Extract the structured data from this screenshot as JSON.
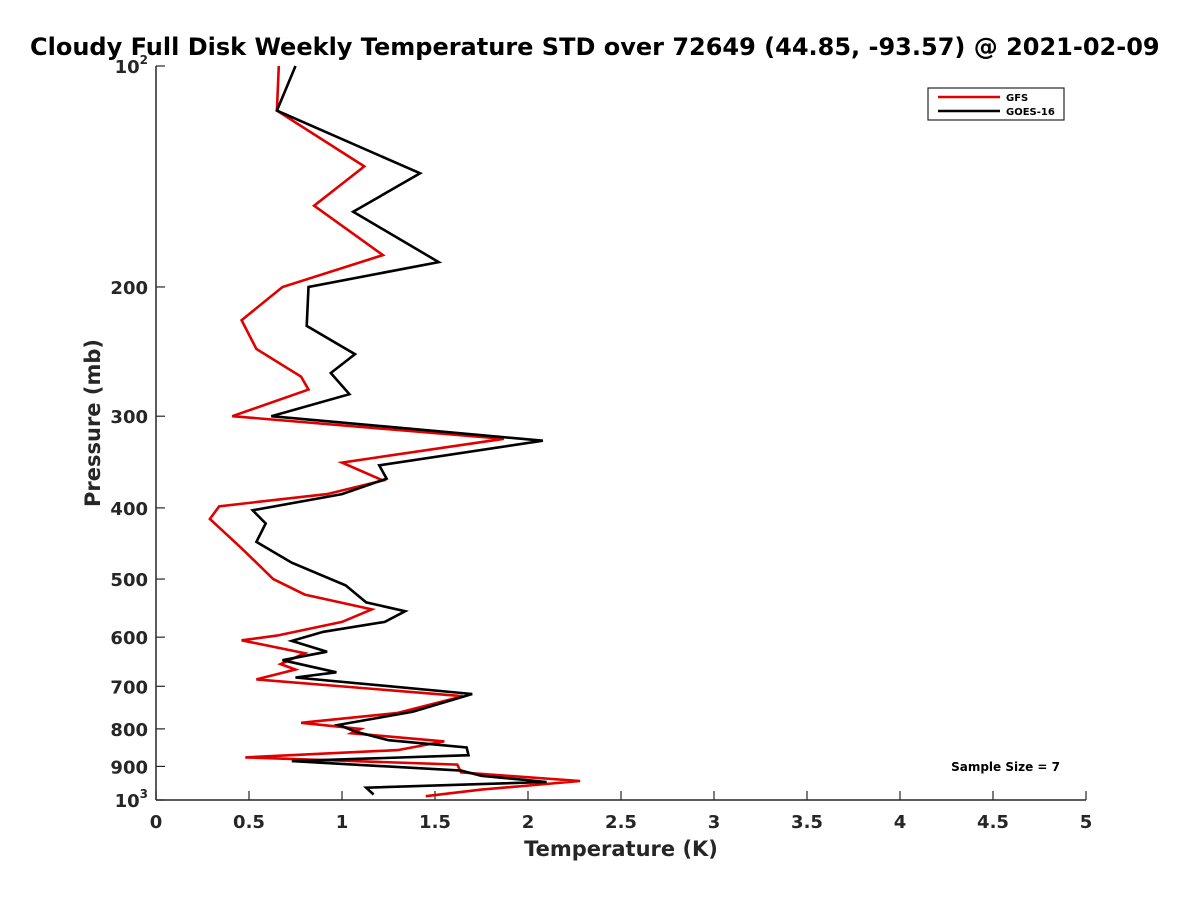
{
  "chart_data": {
    "type": "line",
    "title": "Cloudy Full Disk Weekly Temperature STD over 72649 (44.85, -93.57) @ 2021-02-09",
    "xlabel": "Temperature (K)",
    "ylabel": "Pressure (mb)",
    "xlim": [
      0,
      5
    ],
    "ylim": [
      100,
      1000
    ],
    "y_scale": "log",
    "y_reversed": true,
    "grid": false,
    "legend_position": "top-right",
    "x_ticks": [
      0,
      0.5,
      1,
      1.5,
      2,
      2.5,
      3,
      3.5,
      4,
      4.5,
      5
    ],
    "x_tick_labels": [
      "0",
      "0.5",
      "1",
      "1.5",
      "2",
      "2.5",
      "3",
      "3.5",
      "4",
      "4.5",
      "5"
    ],
    "y_ticks": [
      {
        "value": 100,
        "base": "10",
        "exp": "2"
      },
      {
        "value": 200,
        "label": "200"
      },
      {
        "value": 300,
        "label": "300"
      },
      {
        "value": 400,
        "label": "400"
      },
      {
        "value": 500,
        "label": "500"
      },
      {
        "value": 600,
        "label": "600"
      },
      {
        "value": 700,
        "label": "700"
      },
      {
        "value": 800,
        "label": "800"
      },
      {
        "value": 900,
        "label": "900"
      },
      {
        "value": 1000,
        "base": "10",
        "exp": "3"
      }
    ],
    "annotation": "Sample Size = 7",
    "series": [
      {
        "name": "GFS",
        "color": "#e00000",
        "points": [
          [
            0.66,
            100
          ],
          [
            0.65,
            115
          ],
          [
            1.12,
            137
          ],
          [
            0.85,
            155
          ],
          [
            1.22,
            181
          ],
          [
            0.68,
            200
          ],
          [
            0.46,
            222
          ],
          [
            0.54,
            243
          ],
          [
            0.78,
            265
          ],
          [
            0.82,
            276
          ],
          [
            0.41,
            300
          ],
          [
            1.87,
            322
          ],
          [
            1.0,
            347
          ],
          [
            1.22,
            367
          ],
          [
            0.92,
            383
          ],
          [
            0.34,
            398
          ],
          [
            0.29,
            414
          ],
          [
            0.46,
            454
          ],
          [
            0.63,
            500
          ],
          [
            0.8,
            525
          ],
          [
            1.16,
            550
          ],
          [
            1.0,
            572
          ],
          [
            0.65,
            597
          ],
          [
            0.46,
            606
          ],
          [
            0.8,
            631
          ],
          [
            0.67,
            653
          ],
          [
            0.75,
            664
          ],
          [
            0.54,
            685
          ],
          [
            1.65,
            722
          ],
          [
            1.3,
            761
          ],
          [
            0.78,
            785
          ],
          [
            1.1,
            800
          ],
          [
            1.05,
            811
          ],
          [
            1.55,
            832
          ],
          [
            1.3,
            855
          ],
          [
            0.48,
            875
          ],
          [
            1.62,
            895
          ],
          [
            1.64,
            917
          ],
          [
            2.28,
            942
          ],
          [
            1.75,
            968
          ],
          [
            1.45,
            988
          ]
        ]
      },
      {
        "name": "GOES-16",
        "color": "#000000",
        "points": [
          [
            0.75,
            100
          ],
          [
            0.65,
            115
          ],
          [
            1.42,
            140
          ],
          [
            1.06,
            158
          ],
          [
            1.52,
            185
          ],
          [
            0.82,
            200
          ],
          [
            0.81,
            226
          ],
          [
            1.07,
            247
          ],
          [
            0.94,
            262
          ],
          [
            1.04,
            280
          ],
          [
            0.62,
            300
          ],
          [
            2.08,
            324
          ],
          [
            1.2,
            350
          ],
          [
            1.24,
            365
          ],
          [
            1.0,
            383
          ],
          [
            0.52,
            403
          ],
          [
            0.59,
            420
          ],
          [
            0.54,
            445
          ],
          [
            0.73,
            475
          ],
          [
            1.02,
            510
          ],
          [
            1.13,
            538
          ],
          [
            1.34,
            553
          ],
          [
            1.23,
            572
          ],
          [
            0.9,
            590
          ],
          [
            0.73,
            607
          ],
          [
            0.92,
            628
          ],
          [
            0.68,
            645
          ],
          [
            0.97,
            670
          ],
          [
            0.75,
            681
          ],
          [
            1.7,
            717
          ],
          [
            1.38,
            758
          ],
          [
            0.98,
            790
          ],
          [
            1.08,
            808
          ],
          [
            1.25,
            829
          ],
          [
            1.67,
            848
          ],
          [
            1.68,
            869
          ],
          [
            0.73,
            885
          ],
          [
            1.64,
            912
          ],
          [
            1.75,
            927
          ],
          [
            2.1,
            945
          ],
          [
            1.13,
            962
          ],
          [
            1.17,
            983
          ]
        ]
      }
    ]
  }
}
